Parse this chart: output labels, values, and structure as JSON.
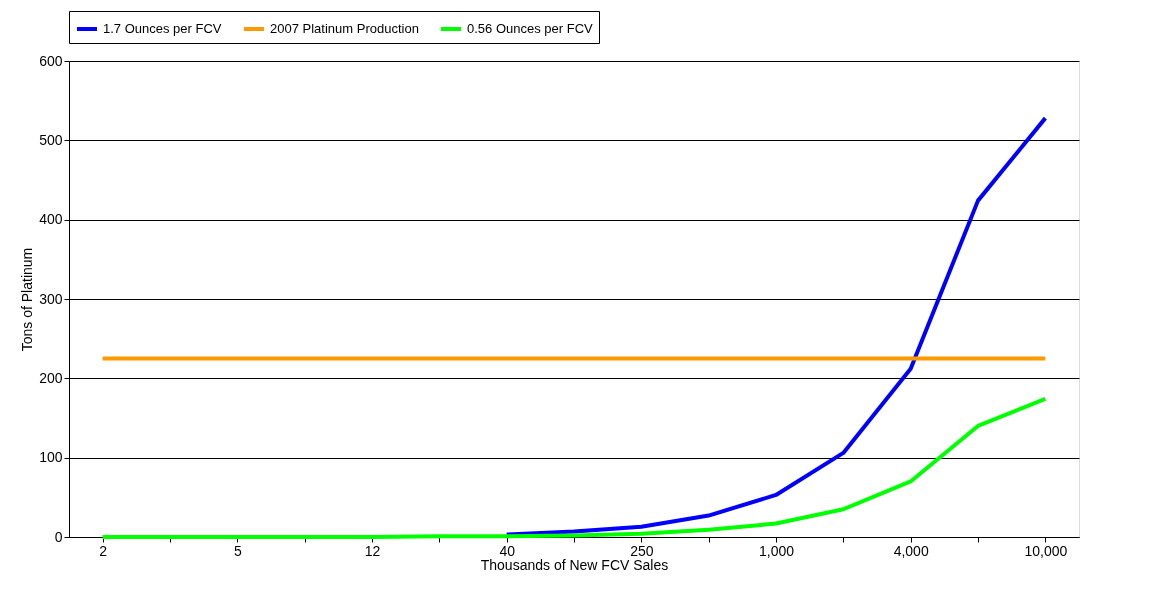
{
  "chart_data": {
    "type": "line",
    "xlabel": "Thousands of New FCV Sales",
    "ylabel": "Tons of Platinum",
    "categories": [
      "2",
      null,
      "5",
      null,
      "12",
      null,
      "40",
      null,
      "250",
      null,
      "1,000",
      null,
      "4,000",
      null,
      "10,000"
    ],
    "series": [
      {
        "name": "1.7 Ounces per FCV",
        "color": "#0000ff",
        "values": [
          null,
          null,
          null,
          null,
          null,
          null,
          3,
          7,
          13,
          27,
          53,
          106,
          212,
          424,
          528
        ]
      },
      {
        "name": "2007 Platinum Production",
        "color": "#ff9900",
        "values": [
          225,
          225,
          225,
          225,
          225,
          225,
          225,
          225,
          225,
          225,
          225,
          225,
          225,
          225,
          225
        ]
      },
      {
        "name": "0.56 Ounces per FCV",
        "color": "#00ff00",
        "values": [
          0,
          0,
          0,
          0,
          0,
          1,
          1,
          2,
          4,
          9,
          17,
          35,
          70,
          140,
          174
        ]
      }
    ],
    "ylim": [
      0,
      600
    ],
    "yticks": [
      0,
      100,
      200,
      300,
      400,
      500,
      600
    ],
    "grid": "y",
    "legend": "top",
    "marker": "none",
    "line_style": "solid"
  }
}
